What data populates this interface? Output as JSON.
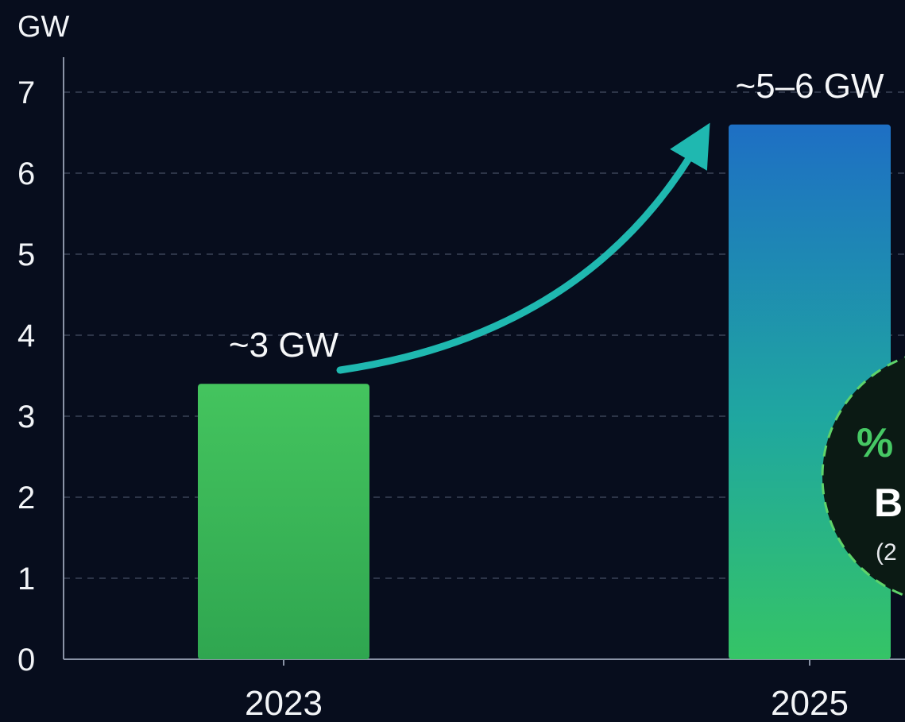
{
  "chart_data": {
    "type": "bar",
    "ylabel": "GW",
    "ylim": [
      0,
      7
    ],
    "yticks": [
      0,
      1,
      2,
      3,
      4,
      5,
      6,
      7
    ],
    "grid": true,
    "categories": [
      "2023",
      "2025"
    ],
    "values": [
      3.4,
      6.6
    ],
    "data_labels": [
      "~3 GW",
      "~5–6 GW"
    ],
    "colors": {
      "bar_2023": "#3fbf5c",
      "bar_2025_top": "#1e6fc4",
      "bar_2025_bottom": "#35c466",
      "arrow": "#1fb8b0",
      "background": "#070d1d"
    },
    "annotation": {
      "arrow": "2023 → 2025 growth",
      "badge_lines": [
        "%",
        "B",
        "(2"
      ]
    }
  }
}
